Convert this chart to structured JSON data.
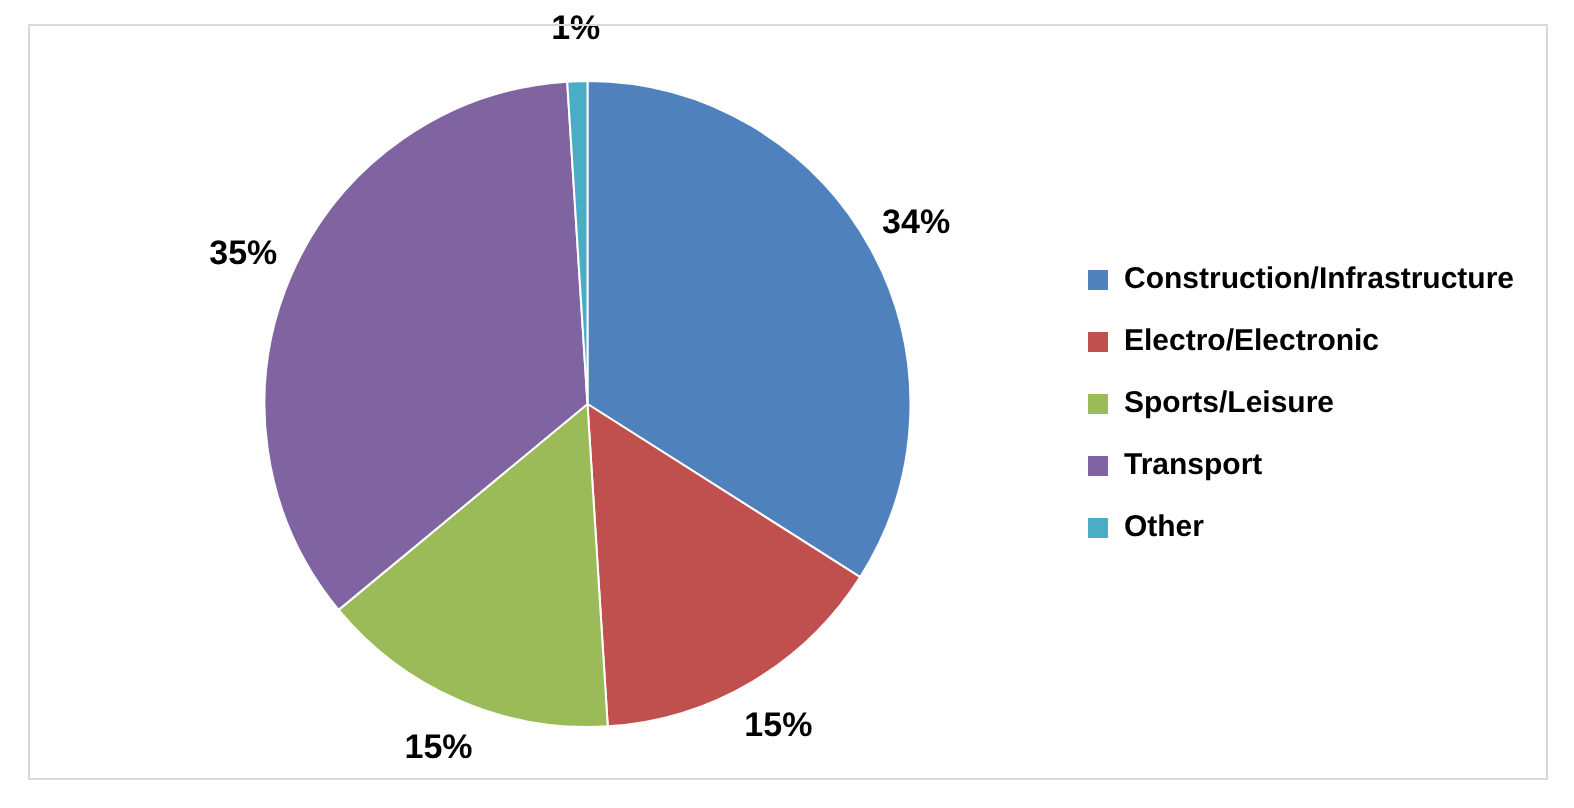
{
  "chart_data": {
    "type": "pie",
    "categories": [
      "Construction/Infrastructure",
      "Electro/Electronic",
      "Sports/Leisure",
      "Transport",
      "Other"
    ],
    "values": [
      34,
      15,
      15,
      35,
      1
    ],
    "colors": [
      "#4f81bd",
      "#c0504d",
      "#9bbb59",
      "#8064a2",
      "#4bacc6"
    ],
    "value_labels": [
      "34%",
      "15%",
      "15%",
      "35%",
      "1%"
    ],
    "legend": "right"
  }
}
